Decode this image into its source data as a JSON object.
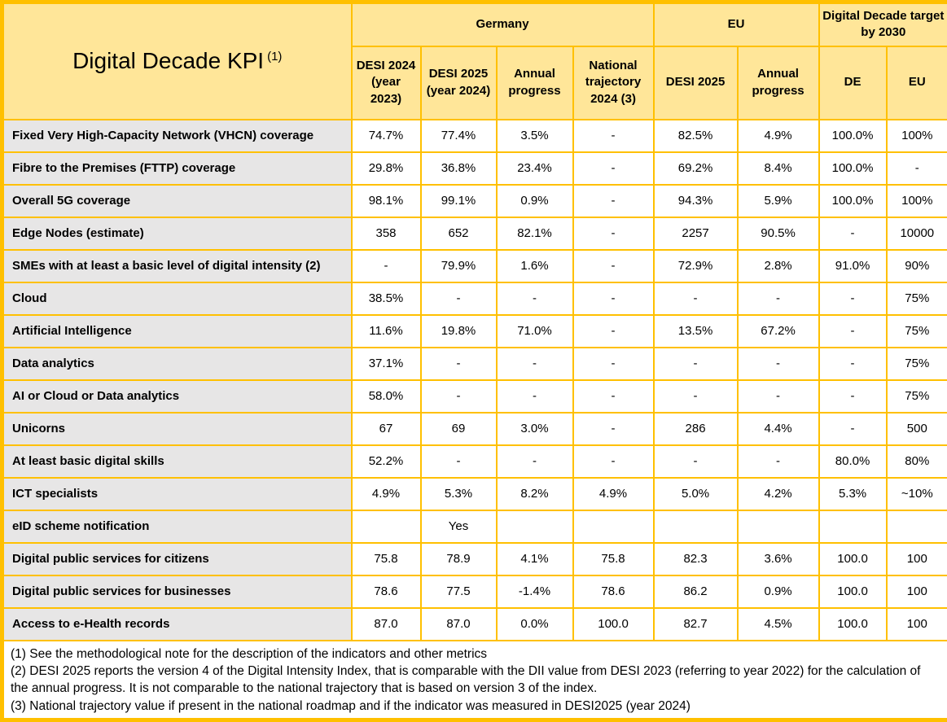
{
  "colors": {
    "header_bg": "#FFE699",
    "border": "#FFC000",
    "label_bg": "#E7E6E6",
    "cell_bg": "#FFFFFF",
    "text": "#000000"
  },
  "table": {
    "title": "Digital Decade KPI",
    "title_superscript": "(1)",
    "col_groups": [
      {
        "label": "Germany",
        "span": 4
      },
      {
        "label": "EU",
        "span": 2
      },
      {
        "label": "Digital Decade target by 2030",
        "span": 2
      }
    ],
    "sub_headers": [
      "DESI 2024 (year 2023)",
      "DESI 2025 (year 2024)",
      "Annual progress",
      "National trajectory 2024 (3)",
      "DESI 2025",
      "Annual progress",
      "DE",
      "EU"
    ],
    "rows": [
      {
        "label": "Fixed Very High-Capacity Network (VHCN) coverage",
        "values": [
          "74.7%",
          "77.4%",
          "3.5%",
          "-",
          "82.5%",
          "4.9%",
          "100.0%",
          "100%"
        ]
      },
      {
        "label": "Fibre to the Premises (FTTP) coverage",
        "values": [
          "29.8%",
          "36.8%",
          "23.4%",
          "-",
          "69.2%",
          "8.4%",
          "100.0%",
          "-"
        ]
      },
      {
        "label": "Overall 5G coverage",
        "values": [
          "98.1%",
          "99.1%",
          "0.9%",
          "-",
          "94.3%",
          "5.9%",
          "100.0%",
          "100%"
        ]
      },
      {
        "label": "Edge Nodes (estimate)",
        "values": [
          "358",
          "652",
          "82.1%",
          "-",
          "2257",
          "90.5%",
          "-",
          "10000"
        ]
      },
      {
        "label": "SMEs with at least a basic level of digital intensity (2)",
        "values": [
          "-",
          "79.9%",
          "1.6%",
          "-",
          "72.9%",
          "2.8%",
          "91.0%",
          "90%"
        ]
      },
      {
        "label": "Cloud",
        "values": [
          "38.5%",
          "-",
          "-",
          "-",
          "-",
          "-",
          "-",
          "75%"
        ]
      },
      {
        "label": "Artificial Intelligence",
        "values": [
          "11.6%",
          "19.8%",
          "71.0%",
          "-",
          "13.5%",
          "67.2%",
          "-",
          "75%"
        ]
      },
      {
        "label": "Data analytics",
        "values": [
          "37.1%",
          "-",
          "-",
          "-",
          "-",
          "-",
          "-",
          "75%"
        ]
      },
      {
        "label": "AI or Cloud or Data analytics",
        "values": [
          "58.0%",
          "-",
          "-",
          "-",
          "-",
          "-",
          "-",
          "75%"
        ]
      },
      {
        "label": "Unicorns",
        "values": [
          "67",
          "69",
          "3.0%",
          "-",
          "286",
          "4.4%",
          "-",
          "500"
        ]
      },
      {
        "label": "At least basic digital skills",
        "values": [
          "52.2%",
          "-",
          "-",
          "-",
          "-",
          "-",
          "80.0%",
          "80%"
        ]
      },
      {
        "label": "ICT specialists",
        "values": [
          "4.9%",
          "5.3%",
          "8.2%",
          "4.9%",
          "5.0%",
          "4.2%",
          "5.3%",
          "~10%"
        ]
      },
      {
        "label": "eID scheme notification",
        "values": [
          "",
          "Yes",
          "",
          "",
          "",
          "",
          "",
          ""
        ]
      },
      {
        "label": "Digital public services for citizens",
        "values": [
          "75.8",
          "78.9",
          "4.1%",
          "75.8",
          "82.3",
          "3.6%",
          "100.0",
          "100"
        ]
      },
      {
        "label": "Digital public services for businesses",
        "values": [
          "78.6",
          "77.5",
          "-1.4%",
          "78.6",
          "86.2",
          "0.9%",
          "100.0",
          "100"
        ]
      },
      {
        "label": "Access to e-Health records",
        "values": [
          "87.0",
          "87.0",
          "0.0%",
          "100.0",
          "82.7",
          "4.5%",
          "100.0",
          "100"
        ]
      }
    ],
    "notes": [
      "(1) See the methodological note for the description of the indicators and other metrics",
      "(2) DESI 2025 reports the version 4 of the Digital Intensity Index, that is comparable with the DII value from DESI 2023 (referring to year 2022) for the calculation of the annual progress. It is not comparable to the national trajectory that is based on version 3 of the index.",
      "(3) National trajectory value if present in the national roadmap and if the indicator was measured in DESI2025 (year 2024)"
    ]
  }
}
